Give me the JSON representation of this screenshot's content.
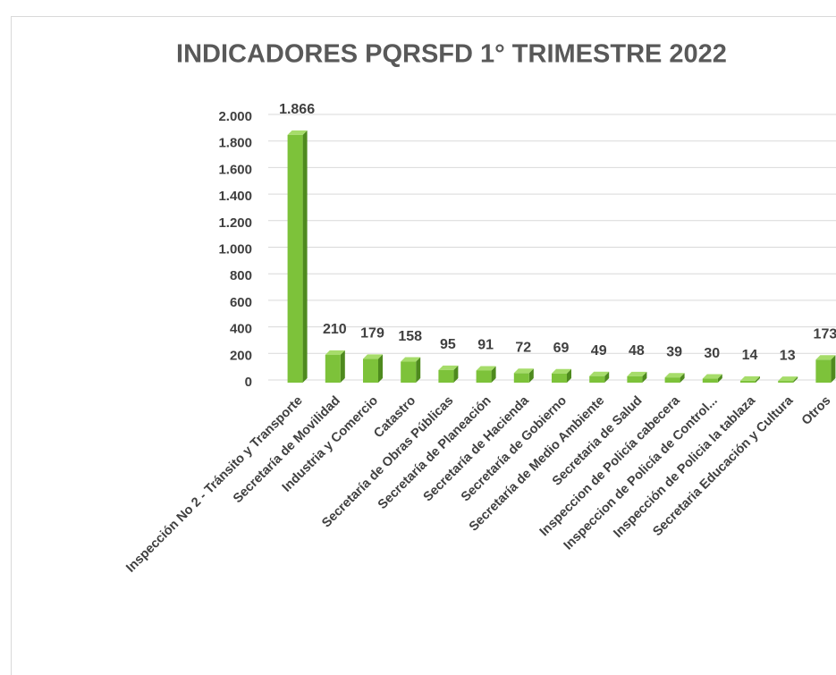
{
  "chart_data": {
    "type": "bar",
    "title": "INDICADORES PQRSFD  1° TRIMESTRE 2022",
    "categories": [
      "Inspección No 2 - Tránsito y Transporte",
      "Secretaría de Movilidad",
      "Industria y Comercio",
      "Catastro",
      "Secretaría de Obras Públicas",
      "Secretaría de Planeación",
      "Secretaría de Hacienda",
      "Secretaría de Gobierno",
      "Secretaría de Medio Ambiente",
      "Secretaria de Salud",
      "Inspeccion de Policía cabecera",
      "Inspeccion de Policía de Control...",
      "Inspección de Policia la tablaza",
      "Secretaria Educación y Cultura",
      "Otros"
    ],
    "values": [
      1866,
      210,
      179,
      158,
      95,
      91,
      72,
      69,
      49,
      48,
      39,
      30,
      14,
      13,
      173
    ],
    "value_labels": [
      "1.866",
      "210",
      "179",
      "158",
      "95",
      "91",
      "72",
      "69",
      "49",
      "48",
      "39",
      "30",
      "14",
      "13",
      "173"
    ],
    "color": "#7dc23a",
    "ylim": [
      0,
      2000
    ],
    "yticks": [
      0,
      200,
      400,
      600,
      800,
      {
        "value": 1000,
        "label": "1.000"
      },
      {
        "value": 1200,
        "label": "1.200"
      },
      {
        "value": 1400,
        "label": "1.400"
      },
      {
        "value": 1600,
        "label": "1.600"
      },
      {
        "value": 1800,
        "label": "1.800"
      },
      {
        "value": 2000,
        "label": "2.000"
      }
    ],
    "grid": true
  }
}
